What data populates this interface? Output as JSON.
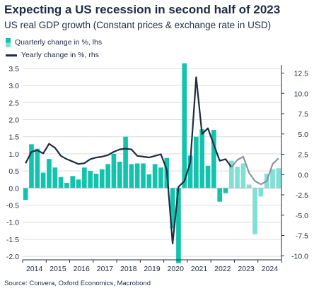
{
  "title": "Expecting a US recession in second half of 2023",
  "subtitle": "US real GDP growth (Constant prices & exchange rate in USD)",
  "source": "Source: Convera, Oxford Economics, Macrobond",
  "colors": {
    "bar": "#12c3ad",
    "bar_forecast": "#7fe0d6",
    "line": "#1f2a44",
    "line_forecast": "#8c93a0",
    "grid": "#dcdcdc"
  },
  "chart_data": {
    "type": "bar",
    "legend": [
      {
        "name": "Quarterly change in %, lhs",
        "kind": "bar"
      },
      {
        "name": "Yearly change in %, rhs",
        "kind": "line"
      }
    ],
    "y_left": {
      "ylim": [
        -2.1,
        3.6
      ],
      "ticks": [
        "3.5",
        "3.0",
        "2.5",
        "2.0",
        "1.5",
        "1.0",
        "0.5",
        "0.0",
        "-0.5",
        "-1.0",
        "-1.5",
        "-2.0"
      ]
    },
    "y_right": {
      "ylim": [
        -10.5,
        13.5
      ],
      "ticks": [
        "12.5",
        "10.0",
        "7.5",
        "5.0",
        "2.5",
        "0.0",
        "-2.5",
        "-5.0",
        "-7.5",
        "-10.0"
      ]
    },
    "x_ticks": [
      "2014",
      "2015",
      "2016",
      "2017",
      "2018",
      "2019",
      "2020",
      "2021",
      "2022",
      "2023",
      "2024"
    ],
    "quarters": [
      "2014Q1",
      "2014Q2",
      "2014Q3",
      "2014Q4",
      "2015Q1",
      "2015Q2",
      "2015Q3",
      "2015Q4",
      "2016Q1",
      "2016Q2",
      "2016Q3",
      "2016Q4",
      "2017Q1",
      "2017Q2",
      "2017Q3",
      "2017Q4",
      "2018Q1",
      "2018Q2",
      "2018Q3",
      "2018Q4",
      "2019Q1",
      "2019Q2",
      "2019Q3",
      "2019Q4",
      "2020Q1",
      "2020Q2",
      "2020Q3",
      "2020Q4",
      "2021Q1",
      "2021Q2",
      "2021Q3",
      "2021Q4",
      "2022Q1",
      "2022Q2",
      "2022Q3",
      "2022Q4",
      "2023Q1",
      "2023Q2",
      "2023Q3",
      "2023Q4",
      "2024Q1",
      "2024Q2",
      "2024Q3",
      "2024Q4"
    ],
    "quarterly_change": [
      -0.35,
      1.28,
      1.15,
      0.45,
      0.85,
      0.6,
      0.32,
      0.15,
      0.35,
      0.25,
      0.6,
      0.5,
      0.42,
      0.55,
      0.7,
      1.0,
      0.77,
      1.5,
      0.7,
      0.72,
      0.72,
      0.4,
      0.7,
      0.6,
      0.88,
      -1.18,
      -2.2,
      3.65,
      0.95,
      1.5,
      1.72,
      0.65,
      1.7,
      -0.4,
      -0.15,
      0.8,
      0.62,
      0.72,
      0.1,
      -1.35,
      -0.25,
      0.42,
      0.55,
      0.58
    ],
    "quarterly_forecast_from": "2022Q4",
    "yearly_change": [
      1.4,
      2.8,
      3.0,
      2.6,
      3.8,
      3.3,
      2.3,
      1.9,
      1.6,
      1.3,
      1.4,
      1.9,
      2.1,
      2.2,
      2.4,
      2.8,
      3.1,
      3.2,
      3.1,
      2.3,
      2.2,
      2.1,
      2.3,
      2.5,
      0.6,
      -8.5,
      -1.5,
      -0.8,
      1.5,
      12.0,
      5.0,
      5.7,
      3.7,
      1.7,
      1.9,
      0.9,
      1.8,
      2.2,
      0.2,
      -0.8,
      -1.2,
      -0.8,
      1.3,
      2.0
    ],
    "yearly_forecast_from": "2022Q4"
  }
}
